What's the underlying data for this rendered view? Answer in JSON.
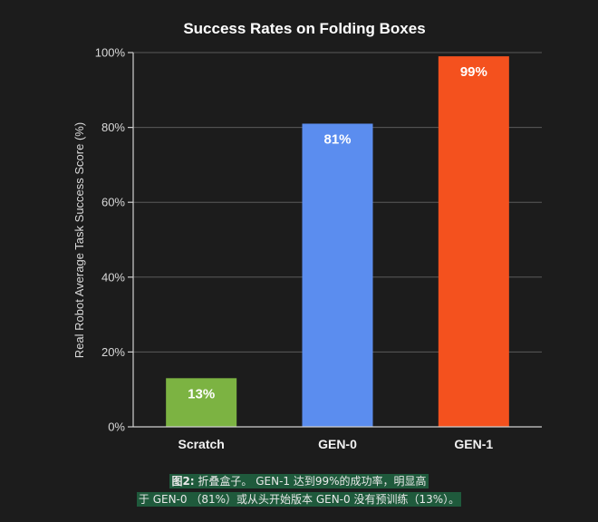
{
  "chart_data": {
    "type": "bar",
    "title": "Success Rates on Folding Boxes",
    "ylabel": "Real Robot Average Task Success Score (%)",
    "xlabel": "",
    "ylim": [
      0,
      100
    ],
    "yticks": [
      0,
      20,
      40,
      60,
      80,
      100
    ],
    "ytick_labels": [
      "0%",
      "20%",
      "40%",
      "60%",
      "80%",
      "100%"
    ],
    "categories": [
      "Scratch",
      "GEN-0",
      "GEN-1"
    ],
    "values": [
      13,
      81,
      99
    ],
    "data_labels": [
      "13%",
      "81%",
      "99%"
    ],
    "colors": [
      "#7cb342",
      "#5b8def",
      "#f4511e"
    ],
    "grid": true
  },
  "caption": {
    "prefix": "图2:",
    "line1": " 折叠盒子。 GEN-1 达到99%的成功率，明显高",
    "line2": "于 GEN-0 （81%）或从头开始版本 GEN-0 没有预训练（13%）。"
  }
}
